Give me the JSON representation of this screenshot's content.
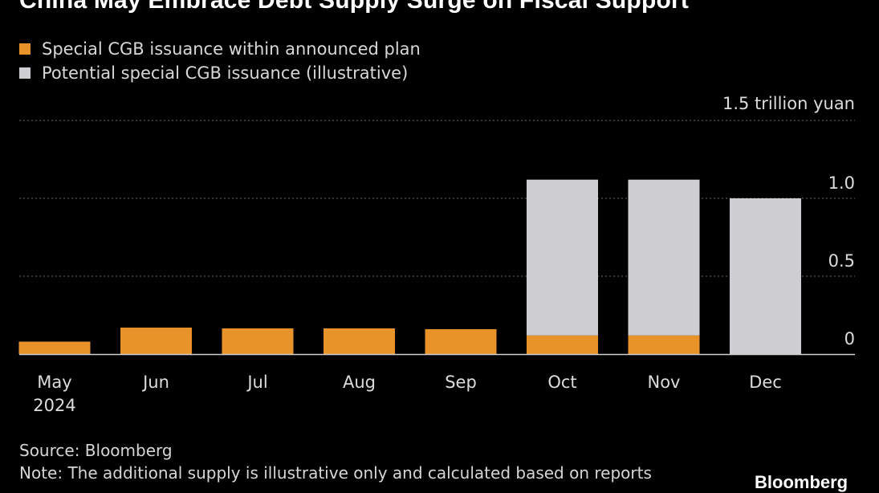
{
  "title": "China May Embrace Debt Supply Surge on Fiscal Support",
  "legend": [
    {
      "label": "Special CGB issuance within announced plan",
      "color": "#e8922a"
    },
    {
      "label": "Potential special CGB issuance (illustrative)",
      "color": "#cfcfd3"
    }
  ],
  "chart_data": {
    "type": "bar",
    "stacked": true,
    "categories": [
      "May\n2024",
      "Jun",
      "Jul",
      "Aug",
      "Sep",
      "Oct",
      "Nov",
      "Dec"
    ],
    "series": [
      {
        "name": "Special CGB issuance within announced plan",
        "color": "#e8922a",
        "values": [
          0.08,
          0.17,
          0.165,
          0.165,
          0.16,
          0.12,
          0.12,
          0
        ]
      },
      {
        "name": "Potential special CGB issuance (illustrative)",
        "color": "#cfcfd3",
        "values": [
          0,
          0,
          0,
          0,
          0,
          1.0,
          1.0,
          1.0
        ]
      }
    ],
    "ylim": [
      0,
      1.5
    ],
    "yticks": [
      0,
      0.5,
      1.0,
      1.5
    ],
    "ytick_labels": [
      "0",
      "0.5",
      "1.0",
      "1.5 trillion yuan"
    ],
    "y_axis_side": "right",
    "grid": true
  },
  "footer": {
    "source": "Source: Bloomberg",
    "note": "Note: The additional supply is illustrative only and calculated based on reports"
  },
  "brand": "Bloomberg"
}
